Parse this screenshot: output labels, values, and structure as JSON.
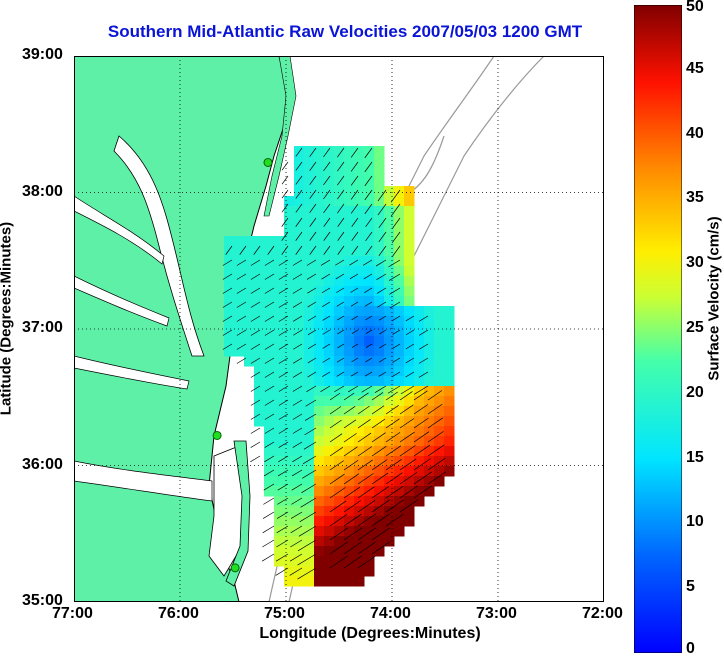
{
  "title": "Southern Mid-Atlantic Raw Velocities 2007/05/03 1200 GMT",
  "map": {
    "xlabel": "Longitude (Degrees:Minutes)",
    "ylabel": "Latitude (Degrees:Minutes)",
    "lon_ticks": [
      "77:00",
      "76:00",
      "75:00",
      "74:00",
      "73:00",
      "72:00"
    ],
    "lat_ticks": [
      "39:00",
      "38:00",
      "37:00",
      "36:00",
      "35:00"
    ],
    "lon_range": [
      -77,
      -72
    ],
    "lat_range": [
      35,
      39
    ],
    "grid": "dotted",
    "land_color": "#5ff0a8",
    "water_color": "#ffffff",
    "coastline_color": "#000000",
    "bathymetry_color": "#999999",
    "station_color": "#22dd22",
    "stations": [
      {
        "lon": -75.17,
        "lat": 38.22
      },
      {
        "lon": -75.65,
        "lat": 36.22
      },
      {
        "lon": -75.48,
        "lat": 35.25
      }
    ]
  },
  "colorbar": {
    "label": "Surface Velocity (cm/s)",
    "ticks": [
      "50",
      "45",
      "40",
      "35",
      "30",
      "25",
      "20",
      "15",
      "10",
      "5",
      "0"
    ],
    "range": [
      0,
      50
    ],
    "colormap": "jet"
  }
}
